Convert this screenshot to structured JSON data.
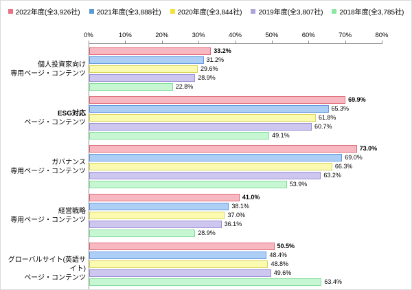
{
  "chart_data": {
    "type": "bar",
    "orientation": "horizontal",
    "title": "",
    "xlabel": "",
    "ylabel": "",
    "xlim": [
      0,
      80
    ],
    "x_ticks": [
      "0%",
      "10%",
      "20%",
      "30%",
      "40%",
      "50%",
      "60%",
      "70%",
      "80%"
    ],
    "grid": false,
    "legend_position": "top",
    "categories": [
      {
        "lines": [
          {
            "text": "個人投資家向け",
            "bold": false
          },
          {
            "text": "専用ページ・コンテンツ",
            "bold": false
          }
        ]
      },
      {
        "lines": [
          {
            "text": "ESG対応",
            "bold": true
          },
          {
            "text": "ページ・コンテンツ",
            "bold": false
          }
        ]
      },
      {
        "lines": [
          {
            "text": "ガバナンス",
            "bold": false
          },
          {
            "text": "専用ページ・コンテンツ",
            "bold": false
          }
        ]
      },
      {
        "lines": [
          {
            "text": "経営戦略",
            "bold": false
          },
          {
            "text": "専用ページ・コンテンツ",
            "bold": false
          }
        ]
      },
      {
        "lines": [
          {
            "text": "グローバルサイト(英語サイト)",
            "bold": false
          },
          {
            "text": "ページ・コンテンツ",
            "bold": false
          }
        ]
      }
    ],
    "series": [
      {
        "name": "2022年度(全3,926社)",
        "legend_color": "#E8737E",
        "fill": "#F8B8C2",
        "border": "#E06A78",
        "bold_value_labels": true,
        "values": [
          33.2,
          69.9,
          73.0,
          41.0,
          50.5
        ]
      },
      {
        "name": "2021年度(全3,888社)",
        "legend_color": "#5B9BD5",
        "fill": "#AECFF5",
        "border": "#6699E0",
        "bold_value_labels": false,
        "values": [
          31.2,
          65.3,
          69.0,
          38.1,
          48.4
        ]
      },
      {
        "name": "2020年度(全3,844社)",
        "legend_color": "#F2E23A",
        "fill": "#FAFAB0",
        "border": "#DBD45A",
        "bold_value_labels": false,
        "values": [
          29.6,
          61.8,
          66.3,
          37.0,
          48.8
        ]
      },
      {
        "name": "2019年度(全3,807社)",
        "legend_color": "#ABA4DD",
        "fill": "#CDC6EE",
        "border": "#9B8FD4",
        "bold_value_labels": false,
        "values": [
          28.9,
          60.7,
          63.2,
          36.1,
          49.6
        ]
      },
      {
        "name": "2018年度(全3,785社)",
        "legend_color": "#8BE8A3",
        "fill": "#C6F6D2",
        "border": "#84DE9C",
        "bold_value_labels": false,
        "values": [
          22.8,
          49.1,
          53.9,
          28.9,
          63.4
        ]
      }
    ],
    "value_label_format": "percent_one_decimal"
  }
}
